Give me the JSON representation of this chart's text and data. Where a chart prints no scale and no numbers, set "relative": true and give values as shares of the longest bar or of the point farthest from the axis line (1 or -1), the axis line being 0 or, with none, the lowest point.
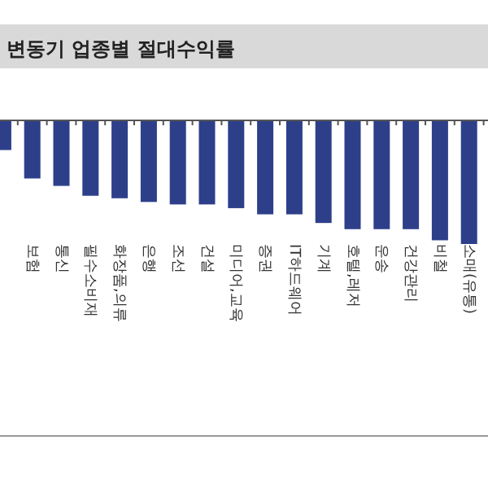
{
  "chart_data": {
    "type": "bar",
    "title": "변동기 업종별 절대수익률",
    "relative": true,
    "categories": [
      null,
      "보험",
      "통신",
      "필수소비재",
      "화장품,의류",
      "은행",
      "조선",
      "건설",
      "미디어,교육",
      "증권",
      "IT하드웨어",
      "기계",
      "호텔,레저",
      "운송",
      "건강관리",
      "비철",
      "소매(유통)"
    ],
    "values": [
      -0.24,
      -0.47,
      -0.53,
      -0.61,
      -0.63,
      -0.66,
      -0.68,
      -0.68,
      -0.71,
      -0.76,
      -0.76,
      -0.83,
      -0.88,
      -0.88,
      -0.88,
      -0.97,
      -1
    ],
    "color": "#2e3f8a"
  }
}
